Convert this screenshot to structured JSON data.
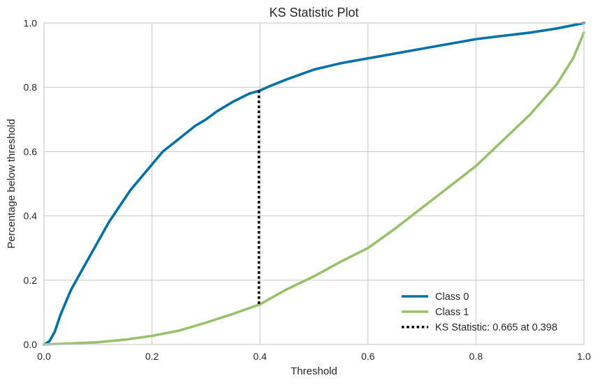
{
  "chart_data": {
    "type": "line",
    "title": "KS Statistic Plot",
    "xlabel": "Threshold",
    "ylabel": "Percentage below threshold",
    "xlim": [
      0.0,
      1.0
    ],
    "ylim": [
      0.0,
      1.0
    ],
    "xticks": [
      0.0,
      0.2,
      0.4,
      0.6,
      0.8,
      1.0
    ],
    "yticks": [
      0.0,
      0.2,
      0.4,
      0.6,
      0.8,
      1.0
    ],
    "xtick_labels": [
      "0.0",
      "0.2",
      "0.4",
      "0.6",
      "0.8",
      "1.0"
    ],
    "ytick_labels": [
      "0.0",
      "0.2",
      "0.4",
      "0.6",
      "0.8",
      "1.0"
    ],
    "grid": true,
    "legend_position": "lower-right",
    "series": [
      {
        "name": "Class 0",
        "color": "#0072a8",
        "style": "solid",
        "x": [
          0.0,
          0.01,
          0.02,
          0.03,
          0.04,
          0.05,
          0.06,
          0.08,
          0.1,
          0.12,
          0.14,
          0.16,
          0.18,
          0.2,
          0.22,
          0.25,
          0.28,
          0.3,
          0.32,
          0.35,
          0.38,
          0.4,
          0.42,
          0.45,
          0.5,
          0.55,
          0.6,
          0.65,
          0.7,
          0.75,
          0.8,
          0.85,
          0.9,
          0.95,
          1.0
        ],
        "y": [
          0.0,
          0.01,
          0.04,
          0.09,
          0.13,
          0.17,
          0.2,
          0.26,
          0.32,
          0.38,
          0.43,
          0.48,
          0.52,
          0.56,
          0.6,
          0.64,
          0.68,
          0.7,
          0.725,
          0.755,
          0.78,
          0.79,
          0.805,
          0.825,
          0.855,
          0.875,
          0.89,
          0.905,
          0.92,
          0.935,
          0.95,
          0.96,
          0.97,
          0.983,
          1.0
        ]
      },
      {
        "name": "Class 1",
        "color": "#97c16a",
        "style": "solid",
        "x": [
          0.0,
          0.05,
          0.1,
          0.15,
          0.2,
          0.25,
          0.3,
          0.35,
          0.4,
          0.45,
          0.5,
          0.55,
          0.6,
          0.65,
          0.7,
          0.75,
          0.8,
          0.85,
          0.9,
          0.95,
          0.98,
          1.0
        ],
        "y": [
          0.0,
          0.003,
          0.007,
          0.015,
          0.027,
          0.043,
          0.068,
          0.095,
          0.125,
          0.172,
          0.212,
          0.258,
          0.3,
          0.36,
          0.425,
          0.49,
          0.555,
          0.635,
          0.715,
          0.81,
          0.89,
          0.97
        ]
      }
    ],
    "ks_statistic": {
      "label": "KS Statistic: 0.665 at 0.398",
      "x": 0.398,
      "y_low": 0.125,
      "y_high": 0.79,
      "color": "#000000",
      "style": "dotted"
    }
  }
}
